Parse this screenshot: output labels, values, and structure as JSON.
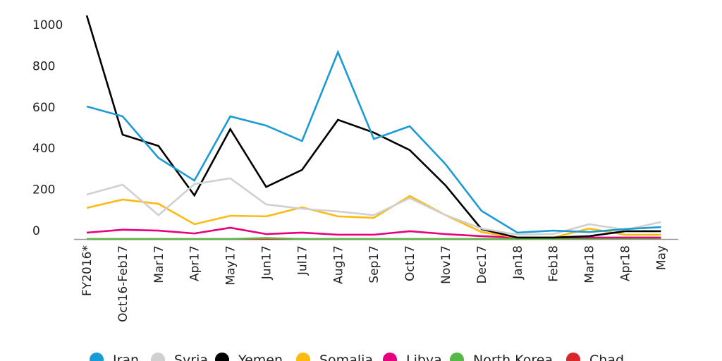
{
  "chart_data": {
    "type": "line",
    "title": "",
    "xlabel": "",
    "ylabel": "",
    "ylim": [
      0,
      1060
    ],
    "yticks": [
      0,
      200,
      400,
      600,
      800,
      1000
    ],
    "grid": false,
    "legend_position": "bottom",
    "categories": [
      "FY2016*",
      "Oct16-Feb17",
      "Mar17",
      "Apr17",
      "May17",
      "Jun17",
      "Jul17",
      "Aug17",
      "Sep17",
      "Oct17",
      "Nov17",
      "Dec17",
      "Jan18",
      "Feb18",
      "Mar18",
      "Apr18",
      "May"
    ],
    "series": [
      {
        "name": "Iran",
        "color": "#1b9ad6",
        "values": [
          644,
          596,
          394,
          284,
          596,
          551,
          476,
          908,
          486,
          548,
          363,
          137,
          31,
          41,
          34,
          48,
          58
        ]
      },
      {
        "name": "Syria",
        "color": "#d0d0d0",
        "values": [
          216,
          264,
          116,
          267,
          295,
          168,
          147,
          134,
          116,
          199,
          116,
          51,
          21,
          24,
          72,
          45,
          82
        ]
      },
      {
        "name": "Yemen",
        "color": "#000000",
        "values": [
          1086,
          507,
          452,
          212,
          534,
          253,
          336,
          579,
          517,
          432,
          260,
          48,
          7,
          7,
          14,
          38,
          38
        ]
      },
      {
        "name": "Somalia",
        "color": "#fdbb12",
        "values": [
          151,
          192,
          171,
          72,
          113,
          110,
          154,
          110,
          103,
          209,
          116,
          34,
          7,
          7,
          51,
          21,
          21
        ]
      },
      {
        "name": "Libya",
        "color": "#e6007e",
        "values": [
          31,
          45,
          41,
          27,
          55,
          24,
          31,
          21,
          21,
          38,
          24,
          14,
          7,
          7,
          7,
          7,
          7
        ]
      },
      {
        "name": "North Korea",
        "color": "#56b849",
        "values": [
          0,
          0,
          0,
          0,
          0,
          5,
          0,
          0,
          0,
          0,
          0,
          0,
          0,
          0,
          0,
          2,
          3
        ]
      },
      {
        "name": "Chad",
        "color": "#d9262a",
        "values": [
          0,
          0,
          0,
          0,
          0,
          0,
          0,
          0,
          0,
          0,
          0,
          0,
          0,
          2,
          2,
          3,
          3
        ]
      }
    ]
  }
}
